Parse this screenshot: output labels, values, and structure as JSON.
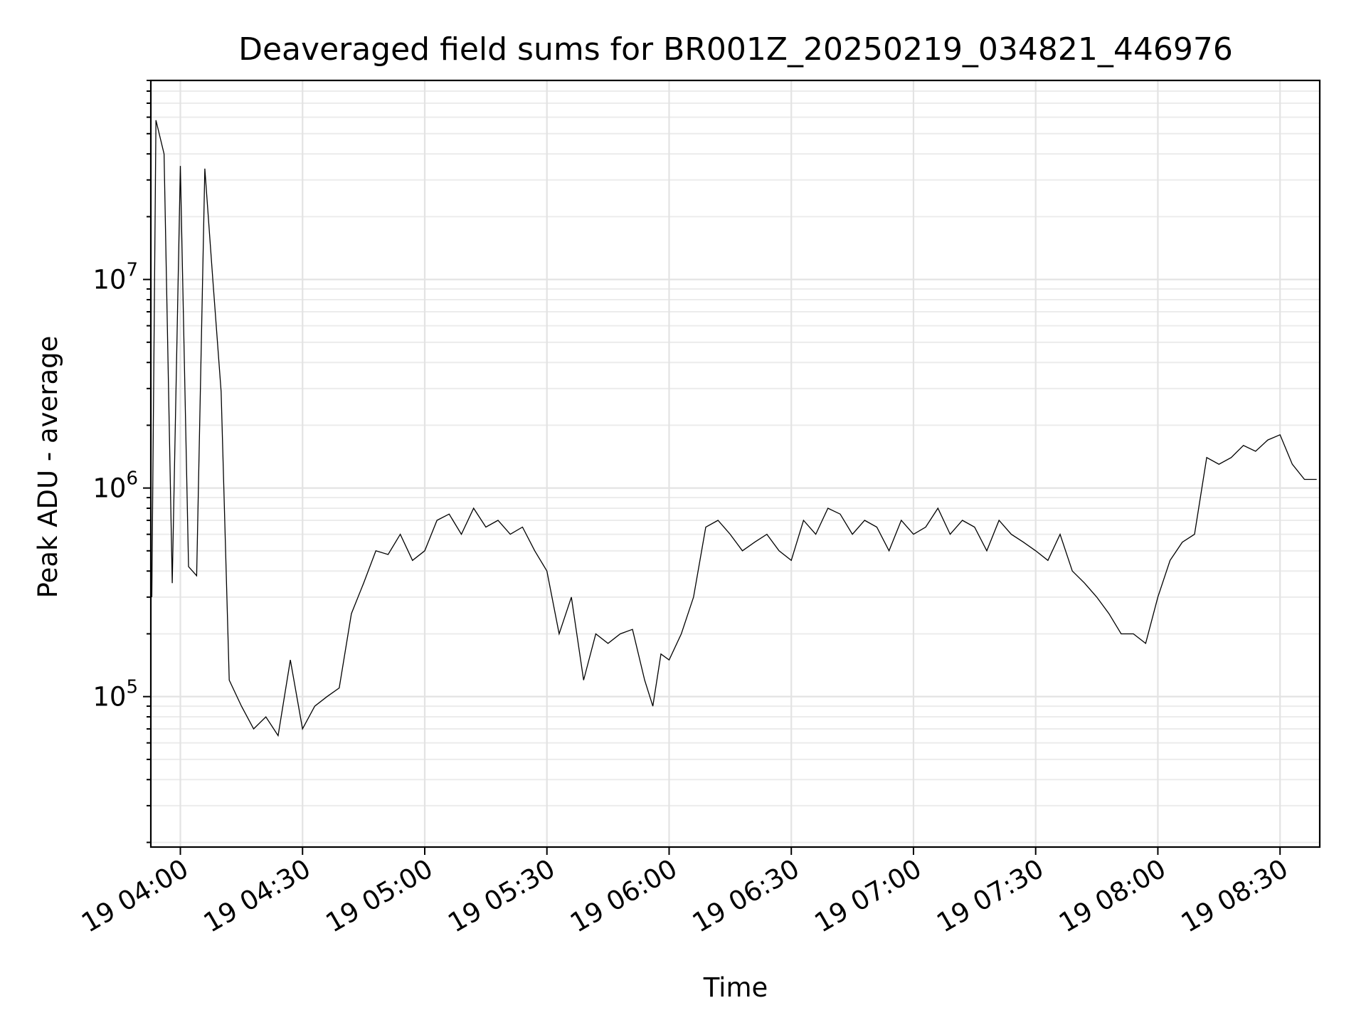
{
  "chart_data": {
    "type": "line",
    "title": "Deaveraged field sums for BR001Z_20250219_034821_446976",
    "xlabel": "Time",
    "ylabel": "Peak ADU - average",
    "yscale": "log",
    "grid": true,
    "legend": "none",
    "line_color": "#000000",
    "xlim": [
      "2025-02-19 03:52:45",
      "2025-02-19 08:39:45"
    ],
    "ylim": [
      19000,
      90000000
    ],
    "x_ticks": [
      {
        "value": "2025-02-19 04:00",
        "label": "19 04:00"
      },
      {
        "value": "2025-02-19 04:30",
        "label": "19 04:30"
      },
      {
        "value": "2025-02-19 05:00",
        "label": "19 05:00"
      },
      {
        "value": "2025-02-19 05:30",
        "label": "19 05:30"
      },
      {
        "value": "2025-02-19 06:00",
        "label": "19 06:00"
      },
      {
        "value": "2025-02-19 06:30",
        "label": "19 06:30"
      },
      {
        "value": "2025-02-19 07:00",
        "label": "19 07:00"
      },
      {
        "value": "2025-02-19 07:30",
        "label": "19 07:30"
      },
      {
        "value": "2025-02-19 08:00",
        "label": "19 08:00"
      },
      {
        "value": "2025-02-19 08:30",
        "label": "19 08:30"
      }
    ],
    "y_ticks": [
      {
        "value": 100000,
        "base": "10",
        "exp": "5"
      },
      {
        "value": 1000000,
        "base": "10",
        "exp": "6"
      },
      {
        "value": 10000000,
        "base": "10",
        "exp": "7"
      }
    ],
    "x": [
      "03:53",
      "03:54",
      "03:56",
      "03:58",
      "04:00",
      "04:02",
      "04:04",
      "04:06",
      "04:08",
      "04:10",
      "04:12",
      "04:15",
      "04:18",
      "04:21",
      "04:24",
      "04:27",
      "04:30",
      "04:33",
      "04:36",
      "04:39",
      "04:42",
      "04:45",
      "04:48",
      "04:51",
      "04:54",
      "04:57",
      "05:00",
      "05:03",
      "05:06",
      "05:09",
      "05:12",
      "05:15",
      "05:18",
      "05:21",
      "05:24",
      "05:27",
      "05:30",
      "05:33",
      "05:36",
      "05:39",
      "05:42",
      "05:45",
      "05:48",
      "05:51",
      "05:54",
      "05:56",
      "05:58",
      "06:00",
      "06:03",
      "06:06",
      "06:09",
      "06:12",
      "06:15",
      "06:18",
      "06:21",
      "06:24",
      "06:27",
      "06:30",
      "06:33",
      "06:36",
      "06:39",
      "06:42",
      "06:45",
      "06:48",
      "06:51",
      "06:54",
      "06:57",
      "07:00",
      "07:03",
      "07:06",
      "07:09",
      "07:12",
      "07:15",
      "07:18",
      "07:21",
      "07:24",
      "07:27",
      "07:30",
      "07:33",
      "07:36",
      "07:39",
      "07:42",
      "07:45",
      "07:48",
      "07:51",
      "07:54",
      "07:57",
      "08:00",
      "08:03",
      "08:06",
      "08:09",
      "08:12",
      "08:15",
      "08:18",
      "08:21",
      "08:24",
      "08:27",
      "08:30",
      "08:33",
      "08:36",
      "08:39"
    ],
    "series": [
      {
        "values": [
          300000,
          58000000,
          40000000,
          350000,
          35000000,
          420000,
          380000,
          34000000,
          9800000,
          2900000,
          120000,
          90000,
          70000,
          80000,
          65000,
          150000,
          70000,
          90000,
          100000,
          110000,
          250000,
          350000,
          500000,
          480000,
          600000,
          450000,
          500000,
          700000,
          750000,
          600000,
          800000,
          650000,
          700000,
          600000,
          650000,
          500000,
          400000,
          200000,
          300000,
          120000,
          200000,
          180000,
          200000,
          210000,
          120000,
          90000,
          160000,
          150000,
          200000,
          300000,
          650000,
          700000,
          600000,
          500000,
          550000,
          600000,
          500000,
          450000,
          700000,
          600000,
          800000,
          750000,
          600000,
          700000,
          650000,
          500000,
          700000,
          600000,
          650000,
          800000,
          600000,
          700000,
          650000,
          500000,
          700000,
          600000,
          550000,
          500000,
          450000,
          600000,
          400000,
          350000,
          300000,
          250000,
          200000,
          200000,
          180000,
          300000,
          450000,
          550000,
          600000,
          1400000,
          1300000,
          1400000,
          1600000,
          1500000,
          1700000,
          1800000,
          1300000,
          1100000,
          1100000
        ]
      }
    ]
  }
}
